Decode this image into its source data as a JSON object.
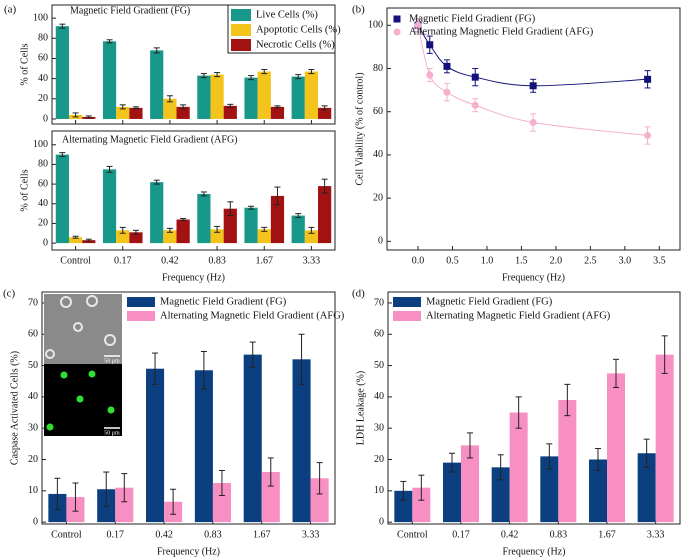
{
  "chart_data": [
    {
      "type": "bar",
      "panel_label": "(a)",
      "annotation": "Magnetic Field Gradient (FG)",
      "y_label": "% of Cells",
      "ylim": [
        -5,
        113
      ],
      "yticks": [
        0,
        20,
        40,
        60,
        80,
        100
      ],
      "legend": "upper right",
      "series": [
        {
          "name": "Live Cells (%)",
          "color": "#17988a",
          "values": [
            92,
            77,
            68,
            43,
            41,
            42
          ],
          "errors": [
            2,
            1.5,
            2.5,
            2,
            2,
            2
          ]
        },
        {
          "name": "Apoptotic Cells (%)",
          "color": "#f2c41c",
          "values": [
            4,
            12,
            20,
            44,
            47,
            47
          ],
          "errors": [
            2,
            2,
            3,
            2,
            2,
            2
          ]
        },
        {
          "name": "Necrotic Cells (%)",
          "color": "#a31212",
          "values": [
            2,
            11,
            12,
            13,
            12,
            11
          ],
          "errors": [
            1,
            1,
            2,
            1.5,
            1,
            2
          ]
        }
      ]
    },
    {
      "type": "bar",
      "annotation": "Alternating Magnetic Field Gradient (AFG)",
      "y_label": "% of Cells",
      "x_label": "Frequency (Hz)",
      "categories": [
        "Control",
        "0.17",
        "0.42",
        "0.83",
        "1.67",
        "3.33"
      ],
      "ylim": [
        -7,
        114
      ],
      "yticks": [
        0,
        20,
        40,
        60,
        80,
        100
      ],
      "series": [
        {
          "color": "#17988a",
          "values": [
            90,
            75,
            62,
            50,
            36,
            28
          ],
          "errors": [
            2,
            3,
            2,
            2,
            1.5,
            2
          ]
        },
        {
          "color": "#f2c41c",
          "values": [
            6,
            13,
            13,
            14,
            14,
            13
          ],
          "errors": [
            1,
            3,
            2,
            3,
            2,
            3
          ]
        },
        {
          "color": "#a31212",
          "values": [
            3,
            11,
            24,
            35,
            48,
            58
          ],
          "errors": [
            1,
            2,
            1,
            7,
            9,
            7
          ]
        }
      ]
    },
    {
      "type": "scatter",
      "panel_label": "(b)",
      "y_label": "Cell Viability (% of control)",
      "x_label": "Frequency (Hz)",
      "xlim": [
        -0.45,
        3.8
      ],
      "ylim": [
        -4,
        108
      ],
      "legend": "upper right",
      "xticks": [
        {
          "value": 0,
          "label": "0.0"
        },
        {
          "value": 0.5,
          "label": "0.5"
        },
        {
          "value": 1,
          "label": "1.0"
        },
        {
          "value": 1.5,
          "label": "1.5"
        },
        {
          "value": 2,
          "label": "2.0"
        },
        {
          "value": 2.5,
          "label": "2.5"
        },
        {
          "value": 3,
          "label": "3.0"
        },
        {
          "value": 3.5,
          "label": "3.5"
        }
      ],
      "yticks": [
        0,
        20,
        40,
        60,
        80,
        100
      ],
      "x": [
        0,
        0.17,
        0.42,
        0.83,
        1.67,
        3.33
      ],
      "series": [
        {
          "name": "Magnetic Field Gradient (FG)",
          "color": "#12127a",
          "marker": "square",
          "values": [
            100,
            91,
            81,
            76,
            72,
            75
          ],
          "errors": [
            3,
            4,
            3,
            4,
            3,
            4
          ]
        },
        {
          "name": "Alternating Magnetic Field Gradient (AFG)",
          "color": "#f4b0cc",
          "marker": "circle",
          "values": [
            100,
            77,
            69,
            63,
            55,
            49
          ],
          "errors": [
            3,
            3,
            4,
            3,
            4,
            4
          ]
        }
      ]
    },
    {
      "type": "bar",
      "panel_label": "(c)",
      "y_label": "Caspase Activated Cells (%)",
      "x_label": "Frequency (Hz)",
      "inset_scale_labels": [
        "50 μm",
        "50 μm"
      ],
      "categories": [
        "Control",
        "0.17",
        "0.42",
        "0.83",
        "1.67",
        "3.33"
      ],
      "ylim": [
        -0.6,
        73.5
      ],
      "yticks": [
        0,
        10,
        20,
        30,
        40,
        50,
        60,
        70
      ],
      "legend": "upper right",
      "series": [
        {
          "name": "Magnetic Field Gradient (FG)",
          "color": "#0b3f80",
          "values": [
            9,
            10.5,
            49,
            48.5,
            53.5,
            52
          ],
          "errors": [
            5,
            5.5,
            5,
            6,
            4,
            8
          ]
        },
        {
          "name": "Alternating Magnetic Field Gradient (AFG)",
          "color": "#f78fc2",
          "values": [
            8,
            11,
            6.5,
            12.5,
            16,
            14
          ],
          "errors": [
            4.5,
            4.5,
            4,
            4,
            4.5,
            5
          ]
        }
      ]
    },
    {
      "type": "bar",
      "panel_label": "(d)",
      "y_label": "LDH Leakage (%)",
      "x_label": "Frequency (Hz)",
      "categories": [
        "Control",
        "0.17",
        "0.42",
        "0.83",
        "1.67",
        "3.33"
      ],
      "ylim": [
        -0.6,
        73.5
      ],
      "yticks": [
        0,
        10,
        20,
        30,
        40,
        50,
        60,
        70
      ],
      "legend": "upper right",
      "series": [
        {
          "name": "Magnetic Field Gradient (FG)",
          "color": "#0b3f80",
          "values": [
            10,
            19,
            17.5,
            21,
            20,
            22
          ],
          "errors": [
            3,
            3,
            4,
            4,
            3.5,
            4.5
          ]
        },
        {
          "name": "Alternating Magnetic Field Gradient (AFG)",
          "color": "#f78fc2",
          "values": [
            11,
            24.5,
            35,
            39,
            47.5,
            53.5
          ],
          "errors": [
            4,
            4,
            5,
            5,
            4.5,
            6
          ]
        }
      ]
    }
  ]
}
